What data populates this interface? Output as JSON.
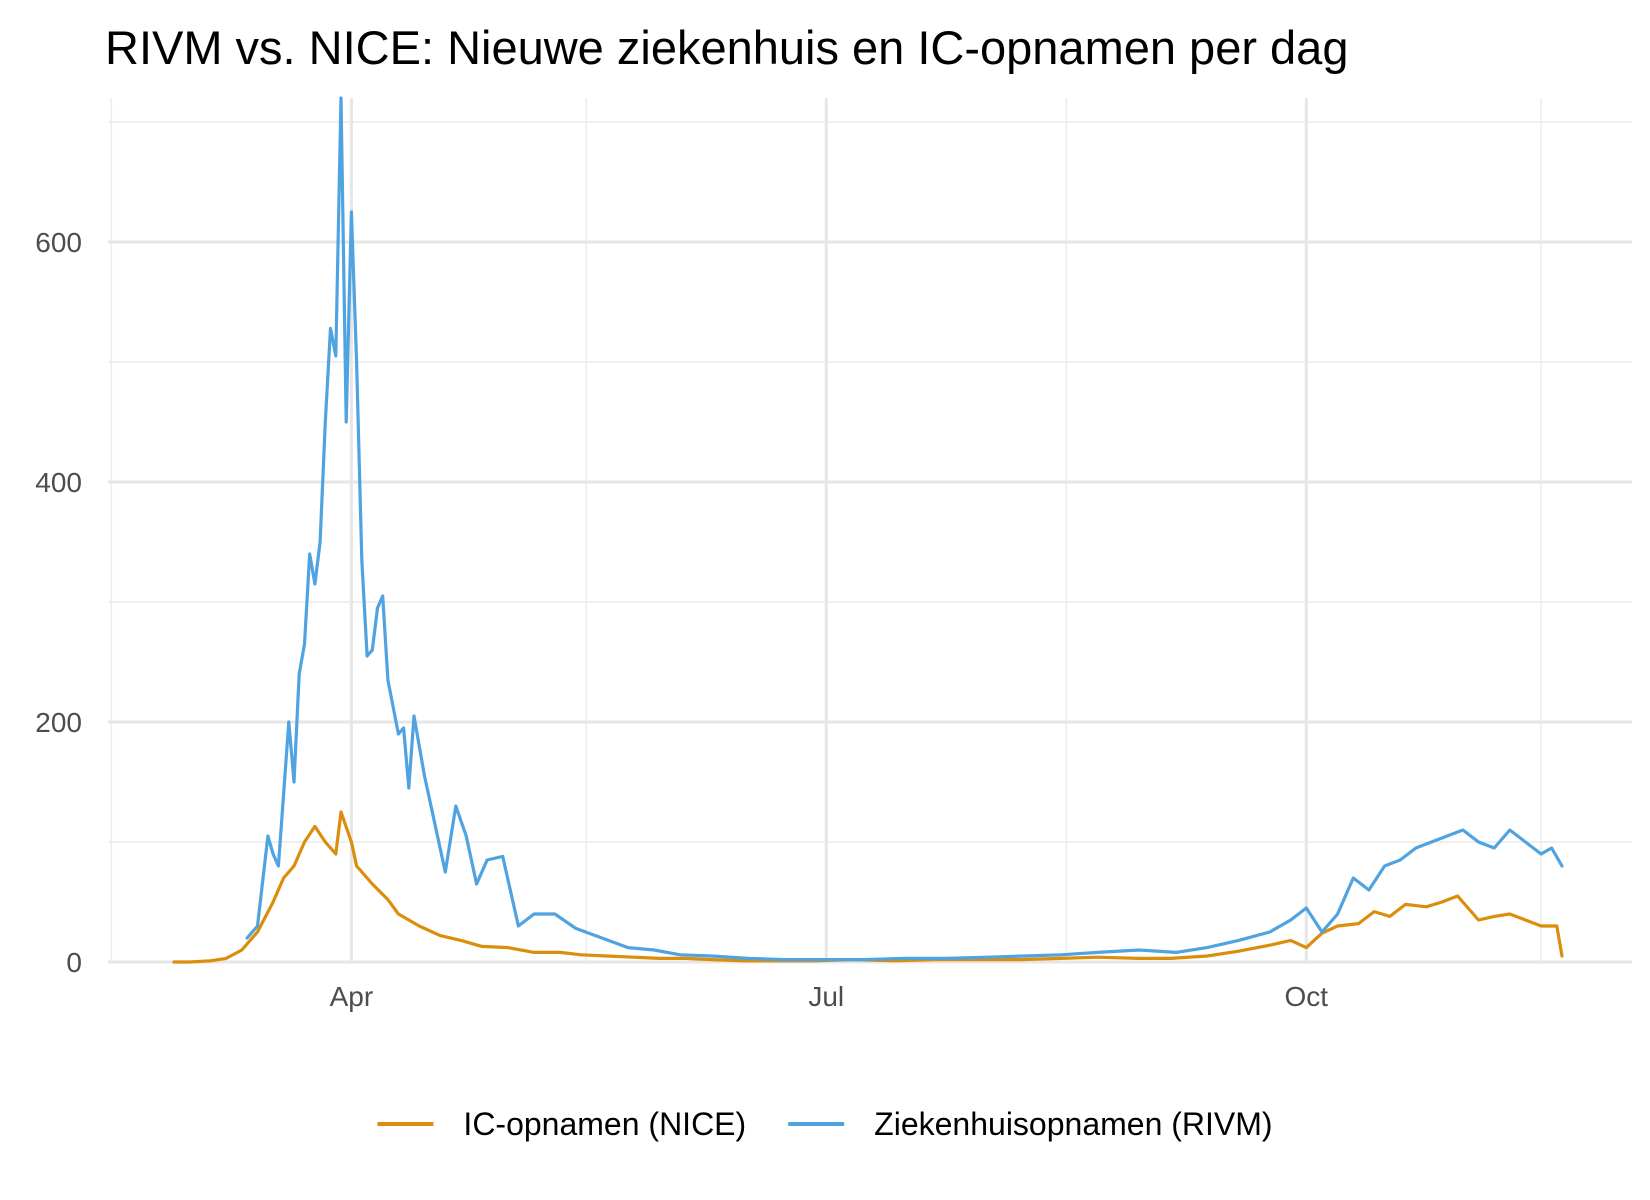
{
  "chart_data": {
    "type": "line",
    "title": "RIVM vs. NICE: Nieuwe ziekenhuis en IC-opnamen per dag",
    "xlabel": "",
    "ylabel": "",
    "x_start": "2020-02-27",
    "x_end": "2020-11-19",
    "x_ticks": [
      {
        "date": "2020-04-01",
        "label": "Apr"
      },
      {
        "date": "2020-07-01",
        "label": "Jul"
      },
      {
        "date": "2020-10-01",
        "label": "Oct"
      }
    ],
    "y_ticks": [
      0,
      200,
      400,
      600
    ],
    "ylim": [
      0,
      720
    ],
    "grid": true,
    "legend_position": "bottom",
    "series": [
      {
        "name": "IC-opnamen (NICE)",
        "color": "#DB8E0C",
        "x": [
          "2020-02-27",
          "2020-03-01",
          "2020-03-05",
          "2020-03-08",
          "2020-03-11",
          "2020-03-14",
          "2020-03-17",
          "2020-03-19",
          "2020-03-21",
          "2020-03-23",
          "2020-03-25",
          "2020-03-27",
          "2020-03-29",
          "2020-03-30",
          "2020-04-01",
          "2020-04-02",
          "2020-04-05",
          "2020-04-08",
          "2020-04-10",
          "2020-04-14",
          "2020-04-18",
          "2020-04-22",
          "2020-04-26",
          "2020-05-01",
          "2020-05-06",
          "2020-05-11",
          "2020-05-15",
          "2020-05-20",
          "2020-05-25",
          "2020-05-30",
          "2020-06-04",
          "2020-06-09",
          "2020-06-15",
          "2020-06-22",
          "2020-06-29",
          "2020-07-06",
          "2020-07-14",
          "2020-07-22",
          "2020-07-30",
          "2020-08-07",
          "2020-08-15",
          "2020-08-22",
          "2020-08-30",
          "2020-09-05",
          "2020-09-12",
          "2020-09-18",
          "2020-09-24",
          "2020-09-28",
          "2020-10-01",
          "2020-10-04",
          "2020-10-07",
          "2020-10-11",
          "2020-10-14",
          "2020-10-17",
          "2020-10-20",
          "2020-10-24",
          "2020-10-27",
          "2020-10-30",
          "2020-11-03",
          "2020-11-06",
          "2020-11-09",
          "2020-11-12",
          "2020-11-15",
          "2020-11-18",
          "2020-11-19"
        ],
        "values": [
          0,
          0,
          1,
          3,
          10,
          25,
          50,
          70,
          80,
          100,
          113,
          100,
          90,
          125,
          100,
          80,
          65,
          52,
          40,
          30,
          22,
          18,
          13,
          12,
          8,
          8,
          6,
          5,
          4,
          3,
          3,
          2,
          1,
          1,
          1,
          2,
          1,
          2,
          2,
          2,
          3,
          4,
          3,
          3,
          5,
          9,
          14,
          18,
          12,
          24,
          30,
          32,
          42,
          38,
          48,
          46,
          50,
          55,
          35,
          38,
          40,
          35,
          30,
          30,
          5
        ]
      },
      {
        "name": "Ziekenhuisopnamen (RIVM)",
        "color": "#4FA3E0",
        "x": [
          "2020-03-12",
          "2020-03-14",
          "2020-03-16",
          "2020-03-17",
          "2020-03-18",
          "2020-03-19",
          "2020-03-20",
          "2020-03-21",
          "2020-03-22",
          "2020-03-23",
          "2020-03-24",
          "2020-03-25",
          "2020-03-26",
          "2020-03-27",
          "2020-03-28",
          "2020-03-29",
          "2020-03-30",
          "2020-03-31",
          "2020-04-01",
          "2020-04-02",
          "2020-04-03",
          "2020-04-04",
          "2020-04-05",
          "2020-04-06",
          "2020-04-07",
          "2020-04-08",
          "2020-04-10",
          "2020-04-11",
          "2020-04-12",
          "2020-04-13",
          "2020-04-15",
          "2020-04-17",
          "2020-04-19",
          "2020-04-21",
          "2020-04-23",
          "2020-04-25",
          "2020-04-27",
          "2020-04-30",
          "2020-05-03",
          "2020-05-06",
          "2020-05-10",
          "2020-05-14",
          "2020-05-19",
          "2020-05-24",
          "2020-05-29",
          "2020-06-03",
          "2020-06-09",
          "2020-06-16",
          "2020-06-23",
          "2020-06-30",
          "2020-07-08",
          "2020-07-16",
          "2020-07-24",
          "2020-08-01",
          "2020-08-08",
          "2020-08-15",
          "2020-08-22",
          "2020-08-30",
          "2020-09-06",
          "2020-09-12",
          "2020-09-18",
          "2020-09-24",
          "2020-09-28",
          "2020-10-01",
          "2020-10-04",
          "2020-10-07",
          "2020-10-10",
          "2020-10-13",
          "2020-10-16",
          "2020-10-19",
          "2020-10-22",
          "2020-10-25",
          "2020-10-28",
          "2020-10-31",
          "2020-11-03",
          "2020-11-06",
          "2020-11-09",
          "2020-11-12",
          "2020-11-15",
          "2020-11-17",
          "2020-11-19"
        ],
        "values": [
          20,
          30,
          105,
          90,
          80,
          140,
          200,
          150,
          240,
          265,
          340,
          315,
          350,
          450,
          528,
          505,
          720,
          450,
          625,
          500,
          335,
          255,
          260,
          295,
          305,
          235,
          190,
          195,
          145,
          205,
          155,
          115,
          75,
          130,
          105,
          65,
          85,
          88,
          30,
          40,
          40,
          28,
          20,
          12,
          10,
          6,
          5,
          3,
          2,
          2,
          2,
          3,
          3,
          4,
          5,
          6,
          8,
          10,
          8,
          12,
          18,
          25,
          35,
          45,
          25,
          40,
          70,
          60,
          80,
          85,
          95,
          100,
          105,
          110,
          100,
          95,
          110,
          100,
          90,
          95,
          80
        ]
      }
    ]
  }
}
